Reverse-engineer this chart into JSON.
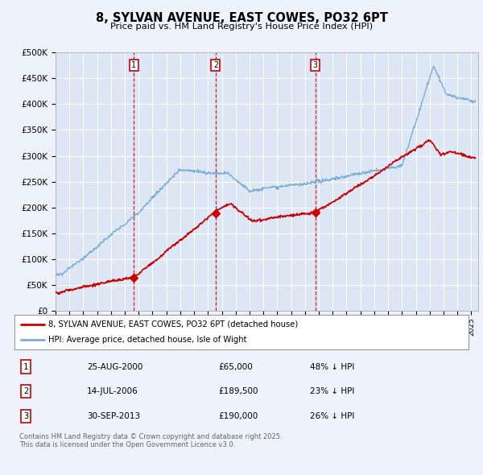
{
  "title": "8, SYLVAN AVENUE, EAST COWES, PO32 6PT",
  "subtitle": "Price paid vs. HM Land Registry's House Price Index (HPI)",
  "background_color": "#eef2fa",
  "plot_bg_color": "#dce6f5",
  "ylim": [
    0,
    500000
  ],
  "yticks": [
    0,
    50000,
    100000,
    150000,
    200000,
    250000,
    300000,
    350000,
    400000,
    450000,
    500000
  ],
  "ytick_labels": [
    "£0",
    "£50K",
    "£100K",
    "£150K",
    "£200K",
    "£250K",
    "£300K",
    "£350K",
    "£400K",
    "£450K",
    "£500K"
  ],
  "xlim_start": 1995.0,
  "xlim_end": 2025.5,
  "red_line_color": "#cc0000",
  "blue_line_color": "#7aadd4",
  "sale_events": [
    {
      "number": 1,
      "year": 2000.65,
      "price": 65000
    },
    {
      "number": 2,
      "year": 2006.55,
      "price": 189500
    },
    {
      "number": 3,
      "year": 2013.75,
      "price": 190000
    }
  ],
  "legend_entries": [
    {
      "label": "8, SYLVAN AVENUE, EAST COWES, PO32 6PT (detached house)",
      "color": "#cc0000"
    },
    {
      "label": "HPI: Average price, detached house, Isle of Wight",
      "color": "#7aadd4"
    }
  ],
  "footer_text": "Contains HM Land Registry data © Crown copyright and database right 2025.\nThis data is licensed under the Open Government Licence v3.0.",
  "table_rows": [
    {
      "num": "1",
      "date": "25-AUG-2000",
      "price": "£65,000",
      "pct": "48% ↓ HPI"
    },
    {
      "num": "2",
      "date": "14-JUL-2006",
      "price": "£189,500",
      "pct": "23% ↓ HPI"
    },
    {
      "num": "3",
      "date": "30-SEP-2013",
      "price": "£190,000",
      "pct": "26% ↓ HPI"
    }
  ]
}
